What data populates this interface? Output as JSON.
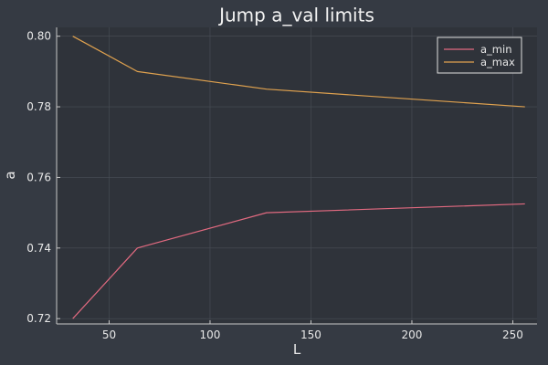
{
  "chart_data": {
    "type": "line",
    "title": "Jump a_val limits",
    "xlabel": "L",
    "ylabel": "a",
    "xlim": [
      24,
      262
    ],
    "ylim": [
      0.7185,
      0.8025
    ],
    "xticks": [
      50,
      100,
      150,
      200,
      250
    ],
    "xtick_labels": [
      "50",
      "100",
      "150",
      "200",
      "250"
    ],
    "yticks": [
      0.72,
      0.74,
      0.76,
      0.78,
      0.8
    ],
    "ytick_labels": [
      "0.72",
      "0.74",
      "0.76",
      "0.78",
      "0.80"
    ],
    "grid": true,
    "legend_position": "top-right",
    "series": [
      {
        "name": "a_min",
        "color": "#e26a80",
        "x": [
          32,
          64,
          128,
          256
        ],
        "y": [
          0.72,
          0.74,
          0.75,
          0.7525
        ]
      },
      {
        "name": "a_max",
        "color": "#e0a24f",
        "x": [
          32,
          64,
          128,
          256
        ],
        "y": [
          0.8,
          0.79,
          0.785,
          0.78
        ]
      }
    ],
    "colors": {
      "background": "#353a43",
      "plot_area": "#2f333a",
      "grid": "#4a4f57",
      "axis": "#c8c8c8",
      "text": "#e8e8e8"
    }
  }
}
